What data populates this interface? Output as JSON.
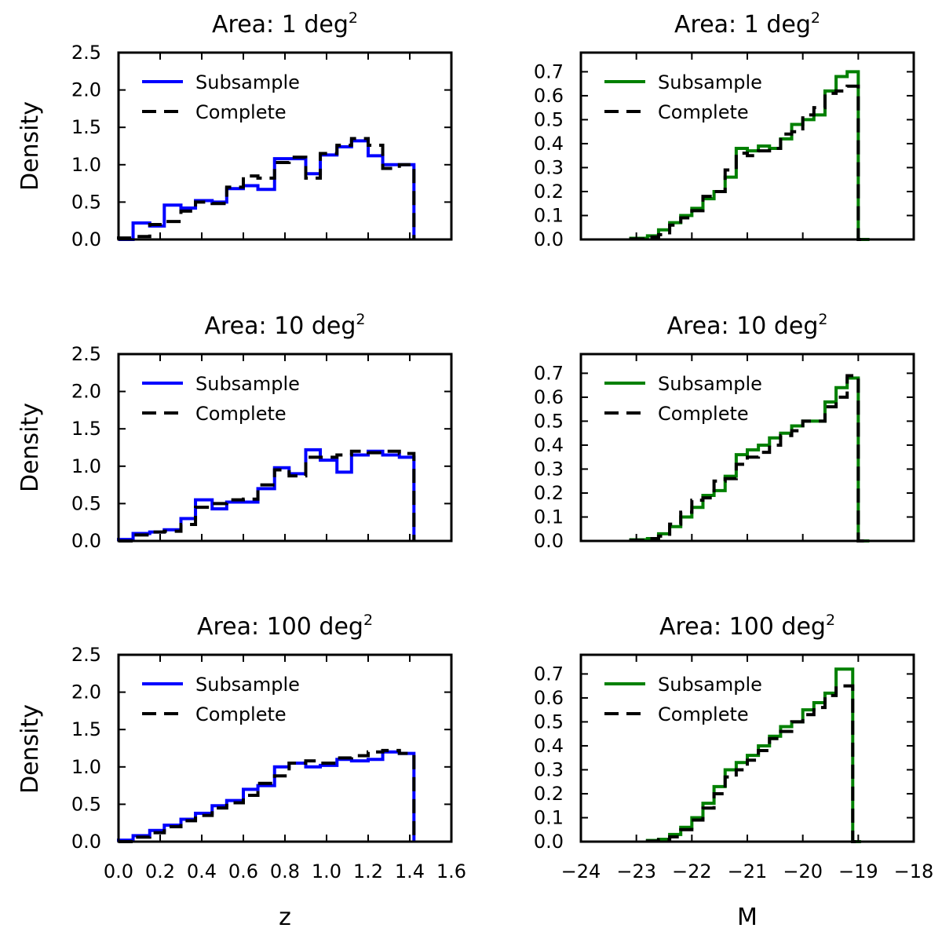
{
  "figure": {
    "ylabel": "Density",
    "xlabel_left": "z",
    "xlabel_right": "M"
  },
  "colors": {
    "z_subsample": "#0000ff",
    "m_subsample": "#008000",
    "complete": "#000000"
  },
  "chart_data": [
    {
      "id": "z-1",
      "type": "step-histogram",
      "title": "Area: 1 deg",
      "title_sup": "2",
      "xlim": [
        0.0,
        1.6
      ],
      "ylim": [
        0.0,
        2.5
      ],
      "xticks": [],
      "yticks": [
        0.0,
        0.5,
        1.0,
        1.5,
        2.0,
        2.5
      ],
      "xticklabels": [],
      "yticklabels": [
        "0.0",
        "0.5",
        "1.0",
        "1.5",
        "2.0",
        "2.5"
      ],
      "legend": [
        "Subsample",
        "Complete"
      ],
      "legend_loc": "upper-left",
      "edges": [
        0.0,
        0.07,
        0.15,
        0.22,
        0.3,
        0.37,
        0.45,
        0.52,
        0.6,
        0.67,
        0.75,
        0.82,
        0.9,
        0.97,
        1.05,
        1.12,
        1.2,
        1.27,
        1.35,
        1.42
      ],
      "series": [
        {
          "name": "Subsample",
          "style": "solid",
          "color_key": "z_subsample",
          "values": [
            0.0,
            0.22,
            0.18,
            0.46,
            0.42,
            0.52,
            0.5,
            0.68,
            0.72,
            0.67,
            1.08,
            1.08,
            0.88,
            1.13,
            1.24,
            1.32,
            1.12,
            1.0,
            1.0
          ]
        },
        {
          "name": "Complete",
          "style": "dashed",
          "color_key": "complete",
          "values": [
            0.02,
            0.04,
            0.2,
            0.24,
            0.38,
            0.5,
            0.48,
            0.7,
            0.85,
            0.82,
            1.03,
            1.1,
            0.82,
            1.15,
            1.26,
            1.35,
            1.26,
            0.95,
            1.0
          ]
        }
      ]
    },
    {
      "id": "m-1",
      "type": "step-histogram",
      "title": "Area: 1 deg",
      "title_sup": "2",
      "xlim": [
        -24,
        -18
      ],
      "ylim": [
        0.0,
        0.78
      ],
      "xticks": [],
      "yticks": [
        0.0,
        0.1,
        0.2,
        0.3,
        0.4,
        0.5,
        0.6,
        0.7
      ],
      "xticklabels": [],
      "yticklabels": [
        "0.0",
        "0.1",
        "0.2",
        "0.3",
        "0.4",
        "0.5",
        "0.6",
        "0.7"
      ],
      "legend": [
        "Subsample",
        "Complete"
      ],
      "legend_loc": "upper-left",
      "edges": [
        -23.1,
        -22.8,
        -22.6,
        -22.4,
        -22.2,
        -22.0,
        -21.8,
        -21.6,
        -21.4,
        -21.2,
        -21.0,
        -20.8,
        -20.6,
        -20.4,
        -20.2,
        -20.0,
        -19.8,
        -19.6,
        -19.4,
        -19.2,
        -19.0,
        -18.8
      ],
      "series": [
        {
          "name": "Subsample",
          "style": "solid",
          "color_key": "m_subsample",
          "values": [
            0.005,
            0.015,
            0.04,
            0.07,
            0.1,
            0.13,
            0.17,
            0.2,
            0.26,
            0.38,
            0.37,
            0.39,
            0.38,
            0.42,
            0.48,
            0.5,
            0.52,
            0.62,
            0.68,
            0.7,
            0.0
          ]
        },
        {
          "name": "Complete",
          "style": "dashed",
          "color_key": "complete",
          "values": [
            0.002,
            0.01,
            0.02,
            0.06,
            0.09,
            0.12,
            0.18,
            0.2,
            0.29,
            0.36,
            0.35,
            0.37,
            0.38,
            0.44,
            0.45,
            0.52,
            0.55,
            0.61,
            0.62,
            0.64,
            0.0
          ]
        }
      ]
    },
    {
      "id": "z-10",
      "type": "step-histogram",
      "title": "Area: 10 deg",
      "title_sup": "2",
      "xlim": [
        0.0,
        1.6
      ],
      "ylim": [
        0.0,
        2.5
      ],
      "xticks": [],
      "yticks": [
        0.0,
        0.5,
        1.0,
        1.5,
        2.0,
        2.5
      ],
      "xticklabels": [],
      "yticklabels": [
        "0.0",
        "0.5",
        "1.0",
        "1.5",
        "2.0",
        "2.5"
      ],
      "legend": [
        "Subsample",
        "Complete"
      ],
      "legend_loc": "upper-left",
      "edges": [
        0.0,
        0.07,
        0.15,
        0.22,
        0.3,
        0.37,
        0.45,
        0.52,
        0.6,
        0.67,
        0.75,
        0.82,
        0.9,
        0.97,
        1.05,
        1.12,
        1.2,
        1.27,
        1.35,
        1.42
      ],
      "series": [
        {
          "name": "Subsample",
          "style": "solid",
          "color_key": "z_subsample",
          "values": [
            0.02,
            0.1,
            0.12,
            0.15,
            0.3,
            0.55,
            0.43,
            0.52,
            0.52,
            0.7,
            0.98,
            0.9,
            1.22,
            1.08,
            0.92,
            1.15,
            1.2,
            1.15,
            1.12
          ]
        },
        {
          "name": "Complete",
          "style": "dashed",
          "color_key": "complete",
          "values": [
            0.0,
            0.08,
            0.12,
            0.13,
            0.22,
            0.45,
            0.5,
            0.55,
            0.56,
            0.75,
            0.95,
            0.87,
            1.12,
            1.12,
            1.15,
            1.2,
            1.18,
            1.2,
            1.17
          ]
        }
      ]
    },
    {
      "id": "m-10",
      "type": "step-histogram",
      "title": "Area: 10 deg",
      "title_sup": "2",
      "xlim": [
        -24,
        -18
      ],
      "ylim": [
        0.0,
        0.78
      ],
      "xticks": [],
      "yticks": [
        0.0,
        0.1,
        0.2,
        0.3,
        0.4,
        0.5,
        0.6,
        0.7
      ],
      "xticklabels": [],
      "yticklabels": [
        "0.0",
        "0.1",
        "0.2",
        "0.3",
        "0.4",
        "0.5",
        "0.6",
        "0.7"
      ],
      "legend": [
        "Subsample",
        "Complete"
      ],
      "legend_loc": "upper-left",
      "edges": [
        -23.1,
        -22.8,
        -22.6,
        -22.4,
        -22.2,
        -22.0,
        -21.8,
        -21.6,
        -21.4,
        -21.2,
        -21.0,
        -20.8,
        -20.6,
        -20.4,
        -20.2,
        -20.0,
        -19.8,
        -19.6,
        -19.4,
        -19.2,
        -19.0,
        -18.8
      ],
      "series": [
        {
          "name": "Subsample",
          "style": "solid",
          "color_key": "m_subsample",
          "values": [
            0.005,
            0.01,
            0.03,
            0.06,
            0.1,
            0.14,
            0.19,
            0.21,
            0.27,
            0.36,
            0.38,
            0.4,
            0.43,
            0.45,
            0.48,
            0.5,
            0.5,
            0.58,
            0.64,
            0.68,
            0.0
          ]
        },
        {
          "name": "Complete",
          "style": "dashed",
          "color_key": "complete",
          "values": [
            0.003,
            0.01,
            0.02,
            0.07,
            0.12,
            0.17,
            0.18,
            0.25,
            0.26,
            0.32,
            0.35,
            0.37,
            0.4,
            0.44,
            0.46,
            0.5,
            0.5,
            0.56,
            0.6,
            0.69,
            0.0
          ]
        }
      ]
    },
    {
      "id": "z-100",
      "type": "step-histogram",
      "title": "Area: 100 deg",
      "title_sup": "2",
      "xlim": [
        0.0,
        1.6
      ],
      "ylim": [
        0.0,
        2.5
      ],
      "xticks": [
        0.0,
        0.2,
        0.4,
        0.6,
        0.8,
        1.0,
        1.2,
        1.4,
        1.6
      ],
      "yticks": [
        0.0,
        0.5,
        1.0,
        1.5,
        2.0,
        2.5
      ],
      "xticklabels": [
        "0.0",
        "0.2",
        "0.4",
        "0.6",
        "0.8",
        "1.0",
        "1.2",
        "1.4",
        "1.6"
      ],
      "yticklabels": [
        "0.0",
        "0.5",
        "1.0",
        "1.5",
        "2.0",
        "2.5"
      ],
      "legend": [
        "Subsample",
        "Complete"
      ],
      "legend_loc": "upper-left",
      "edges": [
        0.0,
        0.07,
        0.15,
        0.22,
        0.3,
        0.37,
        0.45,
        0.52,
        0.6,
        0.67,
        0.75,
        0.82,
        0.9,
        0.97,
        1.05,
        1.12,
        1.2,
        1.27,
        1.35,
        1.42
      ],
      "series": [
        {
          "name": "Subsample",
          "style": "solid",
          "color_key": "z_subsample",
          "values": [
            0.02,
            0.08,
            0.15,
            0.22,
            0.3,
            0.38,
            0.48,
            0.55,
            0.7,
            0.75,
            1.0,
            1.05,
            1.0,
            1.02,
            1.1,
            1.08,
            1.1,
            1.2,
            1.18
          ]
        },
        {
          "name": "Complete",
          "style": "dashed",
          "color_key": "complete",
          "values": [
            0.0,
            0.06,
            0.12,
            0.2,
            0.28,
            0.35,
            0.45,
            0.52,
            0.62,
            0.78,
            0.88,
            1.05,
            1.08,
            1.05,
            1.12,
            1.15,
            1.2,
            1.22,
            1.18
          ]
        }
      ]
    },
    {
      "id": "m-100",
      "type": "step-histogram",
      "title": "Area: 100 deg",
      "title_sup": "2",
      "xlim": [
        -24,
        -18
      ],
      "ylim": [
        0.0,
        0.78
      ],
      "xticks": [
        -24,
        -23,
        -22,
        -21,
        -20,
        -19,
        -18
      ],
      "yticks": [
        0.0,
        0.1,
        0.2,
        0.3,
        0.4,
        0.5,
        0.6,
        0.7
      ],
      "xticklabels": [
        "−24",
        "−23",
        "−22",
        "−21",
        "−20",
        "−19",
        "−18"
      ],
      "yticklabels": [
        "0.0",
        "0.1",
        "0.2",
        "0.3",
        "0.4",
        "0.5",
        "0.6",
        "0.7"
      ],
      "legend": [
        "Subsample",
        "Complete"
      ],
      "legend_loc": "upper-left",
      "edges": [
        -22.8,
        -22.6,
        -22.4,
        -22.2,
        -22.0,
        -21.8,
        -21.6,
        -21.4,
        -21.2,
        -21.0,
        -20.8,
        -20.6,
        -20.4,
        -20.2,
        -20.0,
        -19.8,
        -19.6,
        -19.4,
        -19.2,
        -19.1,
        -18.95
      ],
      "series": [
        {
          "name": "Subsample",
          "style": "solid",
          "color_key": "m_subsample",
          "values": [
            0.005,
            0.01,
            0.03,
            0.06,
            0.1,
            0.16,
            0.23,
            0.3,
            0.33,
            0.36,
            0.4,
            0.44,
            0.48,
            0.5,
            0.55,
            0.58,
            0.62,
            0.72,
            0.72,
            0.0
          ]
        },
        {
          "name": "Complete",
          "style": "dashed",
          "color_key": "complete",
          "values": [
            0.002,
            0.008,
            0.02,
            0.05,
            0.09,
            0.14,
            0.2,
            0.27,
            0.3,
            0.34,
            0.38,
            0.43,
            0.46,
            0.5,
            0.53,
            0.56,
            0.61,
            0.65,
            0.65,
            0.0
          ]
        }
      ]
    }
  ]
}
